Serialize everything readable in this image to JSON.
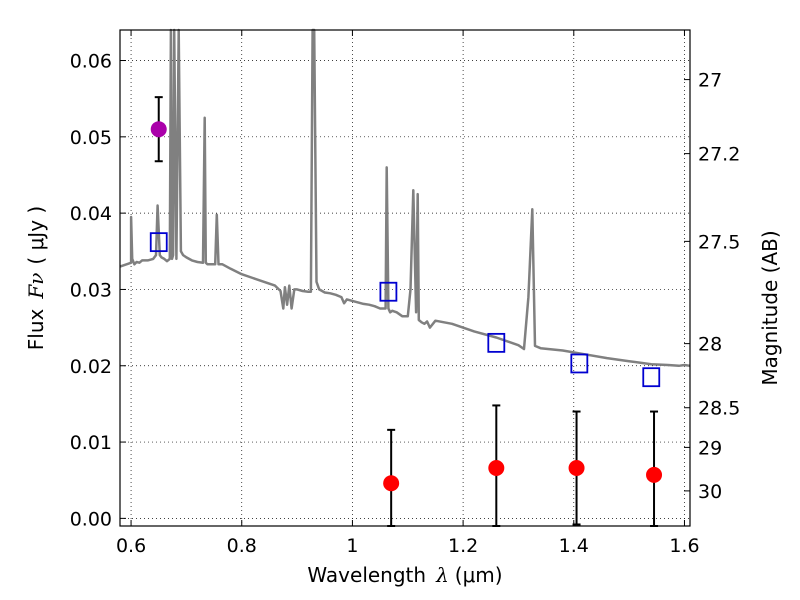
{
  "chart_data": {
    "type": "line",
    "title": "",
    "xlabel_prefix": "Wavelength",
    "xlabel_symbol": "λ",
    "xlabel_unit": "(μm)",
    "ylabel_prefix": "Flux",
    "ylabel_symbol": "Fν",
    "ylabel_unit": "( μJy )",
    "ylabel_right": "Magnitude (AB)",
    "xlim": [
      0.58,
      1.61
    ],
    "ylim": [
      -0.001,
      0.064
    ],
    "grid": true,
    "grid_style": "dotted",
    "x_ticks": [
      0.6,
      0.8,
      1.0,
      1.2,
      1.4,
      1.6
    ],
    "x_tick_labels": [
      "0.6",
      "0.8",
      "1",
      "1.2",
      "1.4",
      "1.6"
    ],
    "y_ticks": [
      0.0,
      0.01,
      0.02,
      0.03,
      0.04,
      0.05,
      0.06
    ],
    "y_tick_labels": [
      "0.00",
      "0.01",
      "0.02",
      "0.03",
      "0.04",
      "0.05",
      "0.06"
    ],
    "right_ticks": [
      {
        "label": "27",
        "flux": 0.0575
      },
      {
        "label": "27.2",
        "flux": 0.0478
      },
      {
        "label": "27.5",
        "flux": 0.0363
      },
      {
        "label": "28",
        "flux": 0.0229
      },
      {
        "label": "28.5",
        "flux": 0.0145
      },
      {
        "label": "29",
        "flux": 0.0093
      },
      {
        "label": "30",
        "flux": 0.0036
      }
    ],
    "series": [
      {
        "kind": "model_spectrum",
        "color": "#808080",
        "x": [
          0.58,
          0.6,
          0.6,
          0.602,
          0.606,
          0.61,
          0.615,
          0.62,
          0.63,
          0.64,
          0.645,
          0.648,
          0.652,
          0.655,
          0.66,
          0.665,
          0.67,
          0.672,
          0.674,
          0.676,
          0.678,
          0.682,
          0.686,
          0.69,
          0.694,
          0.698,
          0.7,
          0.71,
          0.72,
          0.73,
          0.733,
          0.735,
          0.738,
          0.745,
          0.752,
          0.755,
          0.758,
          0.765,
          0.78,
          0.8,
          0.82,
          0.84,
          0.86,
          0.87,
          0.875,
          0.878,
          0.882,
          0.886,
          0.89,
          0.895,
          0.9,
          0.91,
          0.92,
          0.925,
          0.928,
          0.931,
          0.935,
          0.94,
          0.95,
          0.96,
          0.97,
          0.98,
          0.985,
          0.99,
          1.0,
          1.01,
          1.02,
          1.03,
          1.04,
          1.05,
          1.06,
          1.062,
          1.065,
          1.068,
          1.072,
          1.08,
          1.09,
          1.1,
          1.105,
          1.11,
          1.115,
          1.118,
          1.12,
          1.125,
          1.13,
          1.135,
          1.14,
          1.15,
          1.18,
          1.22,
          1.26,
          1.3,
          1.31,
          1.318,
          1.325,
          1.33,
          1.34,
          1.38,
          1.42,
          1.46,
          1.5,
          1.54,
          1.57,
          1.59,
          1.6,
          1.61
        ],
        "y": [
          0.033,
          0.0335,
          0.0395,
          0.034,
          0.0333,
          0.0336,
          0.0335,
          0.0338,
          0.0338,
          0.034,
          0.0345,
          0.041,
          0.0345,
          0.0342,
          0.034,
          0.0337,
          0.034,
          0.064,
          0.034,
          0.0345,
          0.064,
          0.034,
          0.064,
          0.035,
          0.0345,
          0.0343,
          0.0342,
          0.0338,
          0.0336,
          0.0335,
          0.0525,
          0.0335,
          0.0333,
          0.0333,
          0.0333,
          0.0398,
          0.0333,
          0.0333,
          0.0327,
          0.032,
          0.0315,
          0.031,
          0.0305,
          0.0298,
          0.0275,
          0.0303,
          0.028,
          0.0305,
          0.0275,
          0.03,
          0.03,
          0.0298,
          0.0297,
          0.0297,
          0.064,
          0.064,
          0.031,
          0.03,
          0.0296,
          0.0295,
          0.0293,
          0.029,
          0.0282,
          0.0287,
          0.0285,
          0.0283,
          0.0281,
          0.028,
          0.0278,
          0.0275,
          0.0275,
          0.046,
          0.0275,
          0.027,
          0.0272,
          0.027,
          0.0265,
          0.0265,
          0.03,
          0.043,
          0.027,
          0.0425,
          0.026,
          0.0257,
          0.0255,
          0.0258,
          0.025,
          0.0259,
          0.0255,
          0.0245,
          0.0237,
          0.0227,
          0.0222,
          0.029,
          0.0405,
          0.0226,
          0.0223,
          0.022,
          0.0215,
          0.021,
          0.0206,
          0.0202,
          0.0201,
          0.02,
          0.0201,
          0.02
        ]
      },
      {
        "kind": "model_photometry",
        "marker": "open_square",
        "color": "#0000d0",
        "x": [
          0.65,
          1.065,
          1.26,
          1.41,
          1.54
        ],
        "y": [
          0.0362,
          0.0297,
          0.023,
          0.0203,
          0.0185
        ]
      },
      {
        "kind": "detection",
        "marker": "filled_circle",
        "color": "#aa00aa",
        "x": [
          0.65
        ],
        "y": [
          0.051
        ],
        "yerr": [
          0.0042
        ]
      },
      {
        "kind": "non_detection",
        "marker": "filled_circle",
        "color": "#ff0000",
        "x": [
          1.07,
          1.26,
          1.405,
          1.545
        ],
        "y": [
          0.0046,
          0.0066,
          0.0066,
          0.0057
        ],
        "yerr": [
          0.007,
          0.0082,
          0.0074,
          0.0083
        ]
      }
    ]
  }
}
